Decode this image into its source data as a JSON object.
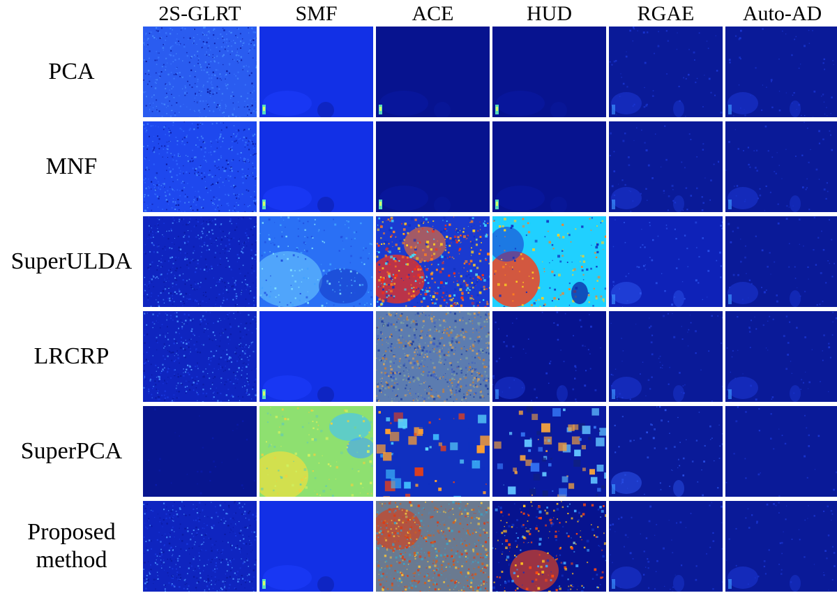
{
  "columns": [
    "2S-GLRT",
    "SMF",
    "ACE",
    "HUD",
    "RGAE",
    "Auto-AD"
  ],
  "rows": [
    {
      "label": "PCA",
      "cells": [
        {
          "bg": "#2a5cf0",
          "style": "noise",
          "accent": "#3b78ff"
        },
        {
          "bg": "#1230e6",
          "style": "target",
          "accent": "#1d3dff"
        },
        {
          "bg": "#07138f",
          "style": "target",
          "accent": "#0a1aa8"
        },
        {
          "bg": "#07138f",
          "style": "target",
          "accent": "#0a1aa8"
        },
        {
          "bg": "#0a1a98",
          "style": "scene",
          "accent": "#1a35d0"
        },
        {
          "bg": "#0a1a98",
          "style": "scene",
          "accent": "#1a35d0"
        }
      ]
    },
    {
      "label": "MNF",
      "cells": [
        {
          "bg": "#1e48ee",
          "style": "noise",
          "accent": "#2f66ff"
        },
        {
          "bg": "#1230e6",
          "style": "target",
          "accent": "#1d3dff"
        },
        {
          "bg": "#07138f",
          "style": "target",
          "accent": "#0a1aa8"
        },
        {
          "bg": "#07138f",
          "style": "target",
          "accent": "#0a1aa8"
        },
        {
          "bg": "#0a1a98",
          "style": "scene",
          "accent": "#1a35d0"
        },
        {
          "bg": "#0a1a98",
          "style": "scene",
          "accent": "#1a35d0"
        }
      ]
    },
    {
      "label": "SuperULDA",
      "cells": [
        {
          "bg": "#0f25c0",
          "style": "noise",
          "accent": "#1a3ae0"
        },
        {
          "bg": "#2a70f5",
          "style": "bright",
          "accent": "#4aa8ff"
        },
        {
          "bg": "#1a3ad0",
          "style": "hot",
          "accent": "#ff3a10"
        },
        {
          "bg": "#20d0ff",
          "style": "hotcyan",
          "accent": "#ff4a10"
        },
        {
          "bg": "#0e22b8",
          "style": "scene",
          "accent": "#2a50e8"
        },
        {
          "bg": "#0a1a98",
          "style": "scene",
          "accent": "#1a35d0"
        }
      ]
    },
    {
      "label": "LRCRP",
      "cells": [
        {
          "bg": "#0f25c0",
          "style": "noise",
          "accent": "#1a3ae0"
        },
        {
          "bg": "#1230e6",
          "style": "target",
          "accent": "#1d3dff"
        },
        {
          "bg": "#5c7cb0",
          "style": "mixed",
          "accent": "#c08040"
        },
        {
          "bg": "#07138f",
          "style": "scene",
          "accent": "#1a35d0"
        },
        {
          "bg": "#0a1a98",
          "style": "scene",
          "accent": "#1a35d0"
        },
        {
          "bg": "#0a1a98",
          "style": "scene",
          "accent": "#1a35d0"
        }
      ]
    },
    {
      "label": "SuperPCA",
      "cells": [
        {
          "bg": "#08168f",
          "style": "flat",
          "accent": "#0a1aa8"
        },
        {
          "bg": "#8ee070",
          "style": "yellowgreen",
          "accent": "#f0e040"
        },
        {
          "bg": "#1030c0",
          "style": "patches",
          "accent": "#40c0ff"
        },
        {
          "bg": "#0a1aa0",
          "style": "patches2",
          "accent": "#3a80ff"
        },
        {
          "bg": "#0a1a98",
          "style": "scene",
          "accent": "#2a50e8"
        },
        {
          "bg": "#0a1a98",
          "style": "flat",
          "accent": "#1a35d0"
        }
      ]
    },
    {
      "label": "Proposed\nmethod",
      "cells": [
        {
          "bg": "#0f25c0",
          "style": "noise",
          "accent": "#1a3ae0"
        },
        {
          "bg": "#1230e6",
          "style": "target",
          "accent": "#1d3dff"
        },
        {
          "bg": "#6a7a90",
          "style": "hotmix",
          "accent": "#e03a10"
        },
        {
          "bg": "#07138f",
          "style": "fire",
          "accent": "#ff4a10"
        },
        {
          "bg": "#0a1a98",
          "style": "scene",
          "accent": "#1a35d0"
        },
        {
          "bg": "#0a1a98",
          "style": "scene",
          "accent": "#1a35d0"
        }
      ]
    }
  ]
}
